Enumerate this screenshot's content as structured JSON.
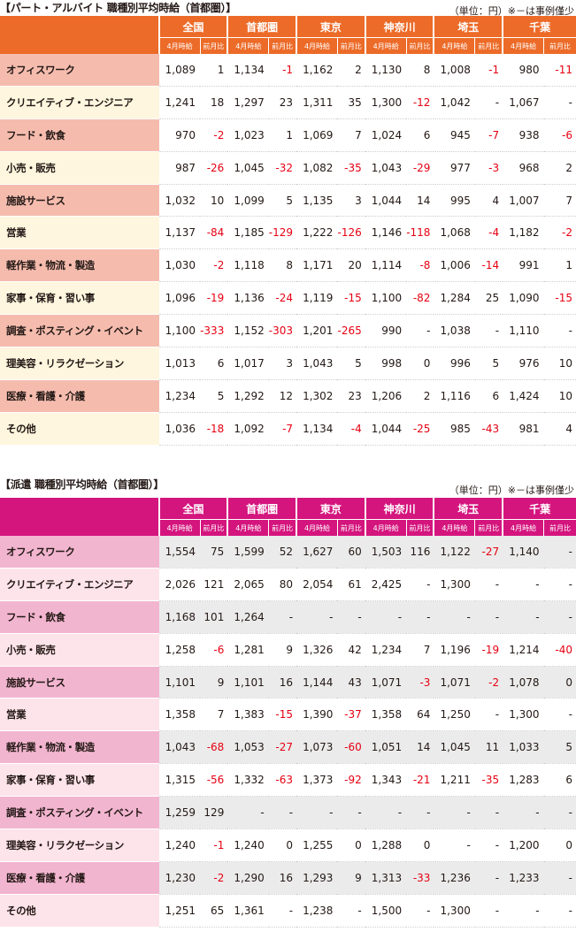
{
  "part": {
    "title": "【パート・アルバイト 職種別平均時給（首都圏）】",
    "unit_note": "（単位：円）※－は事例僅少",
    "regions": [
      "全国",
      "首都圏",
      "東京",
      "神奈川",
      "埼玉",
      "千葉"
    ],
    "col_hour": "4月時給",
    "col_diff": "前月比",
    "rows": [
      {
        "label": "オフィスワーク",
        "values": [
          "1,089",
          "1",
          "1,134",
          "-1",
          "1,162",
          "2",
          "1,130",
          "8",
          "1,008",
          "-1",
          "980",
          "-11"
        ]
      },
      {
        "label": "クリエイティブ・エンジニア",
        "values": [
          "1,241",
          "18",
          "1,297",
          "23",
          "1,311",
          "35",
          "1,300",
          "-12",
          "1,042",
          "-",
          "1,067",
          "-"
        ]
      },
      {
        "label": "フード・飲食",
        "values": [
          "970",
          "-2",
          "1,023",
          "1",
          "1,069",
          "7",
          "1,024",
          "6",
          "945",
          "-7",
          "938",
          "-6"
        ]
      },
      {
        "label": "小売・販売",
        "values": [
          "987",
          "-26",
          "1,045",
          "-32",
          "1,082",
          "-35",
          "1,043",
          "-29",
          "977",
          "-3",
          "968",
          "2"
        ]
      },
      {
        "label": "施設サービス",
        "values": [
          "1,032",
          "10",
          "1,099",
          "5",
          "1,135",
          "3",
          "1,044",
          "14",
          "995",
          "4",
          "1,007",
          "7"
        ]
      },
      {
        "label": "営業",
        "values": [
          "1,137",
          "-84",
          "1,185",
          "-129",
          "1,222",
          "-126",
          "1,146",
          "-118",
          "1,068",
          "-4",
          "1,182",
          "-2"
        ]
      },
      {
        "label": "軽作業・物流・製造",
        "values": [
          "1,030",
          "-2",
          "1,118",
          "8",
          "1,171",
          "20",
          "1,114",
          "-8",
          "1,006",
          "-14",
          "991",
          "1"
        ]
      },
      {
        "label": "家事・保育・習い事",
        "values": [
          "1,096",
          "-19",
          "1,136",
          "-24",
          "1,119",
          "-15",
          "1,100",
          "-82",
          "1,284",
          "25",
          "1,090",
          "-15"
        ]
      },
      {
        "label": "調査・ポスティング・イベント",
        "values": [
          "1,100",
          "-333",
          "1,152",
          "-303",
          "1,201",
          "-265",
          "990",
          "-",
          "1,038",
          "-",
          "1,110",
          "-"
        ]
      },
      {
        "label": "理美容・リラクゼーション",
        "values": [
          "1,013",
          "6",
          "1,017",
          "3",
          "1,043",
          "5",
          "998",
          "0",
          "996",
          "5",
          "976",
          "10"
        ]
      },
      {
        "label": "医療・看護・介護",
        "values": [
          "1,234",
          "5",
          "1,292",
          "12",
          "1,302",
          "23",
          "1,206",
          "2",
          "1,116",
          "6",
          "1,424",
          "10"
        ]
      },
      {
        "label": "その他",
        "values": [
          "1,036",
          "-18",
          "1,092",
          "-7",
          "1,134",
          "-4",
          "1,044",
          "-25",
          "985",
          "-43",
          "981",
          "4"
        ]
      }
    ]
  },
  "haken": {
    "title": "【派遣 職種別平均時給（首都圏）】",
    "unit_note": "（単位：円）※－は事例僅少",
    "regions": [
      "全国",
      "首都圏",
      "東京",
      "神奈川",
      "埼玉",
      "千葉"
    ],
    "col_hour": "4月時給",
    "col_diff": "前月比",
    "rows": [
      {
        "label": "オフィスワーク",
        "values": [
          "1,554",
          "75",
          "1,599",
          "52",
          "1,627",
          "60",
          "1,503",
          "116",
          "1,122",
          "-27",
          "1,140",
          "-"
        ]
      },
      {
        "label": "クリエイティブ・エンジニア",
        "values": [
          "2,026",
          "121",
          "2,065",
          "80",
          "2,054",
          "61",
          "2,425",
          "-",
          "1,300",
          "-",
          "-",
          "-"
        ]
      },
      {
        "label": "フード・飲食",
        "values": [
          "1,168",
          "101",
          "1,264",
          "-",
          "-",
          "-",
          "-",
          "-",
          "-",
          "-",
          "-",
          "-"
        ]
      },
      {
        "label": "小売・販売",
        "values": [
          "1,258",
          "-6",
          "1,281",
          "9",
          "1,326",
          "42",
          "1,234",
          "7",
          "1,196",
          "-19",
          "1,214",
          "-40"
        ]
      },
      {
        "label": "施設サービス",
        "values": [
          "1,101",
          "9",
          "1,101",
          "16",
          "1,144",
          "43",
          "1,071",
          "-3",
          "1,071",
          "-2",
          "1,078",
          "0"
        ]
      },
      {
        "label": "営業",
        "values": [
          "1,358",
          "7",
          "1,383",
          "-15",
          "1,390",
          "-37",
          "1,358",
          "64",
          "1,250",
          "-",
          "1,300",
          "-"
        ]
      },
      {
        "label": "軽作業・物流・製造",
        "values": [
          "1,043",
          "-68",
          "1,053",
          "-27",
          "1,073",
          "-60",
          "1,051",
          "14",
          "1,045",
          "11",
          "1,033",
          "5"
        ]
      },
      {
        "label": "家事・保育・習い事",
        "values": [
          "1,315",
          "-56",
          "1,332",
          "-63",
          "1,373",
          "-92",
          "1,343",
          "-21",
          "1,211",
          "-35",
          "1,283",
          "6"
        ]
      },
      {
        "label": "調査・ポスティング・イベント",
        "values": [
          "1,259",
          "129",
          "-",
          "-",
          "-",
          "-",
          "-",
          "-",
          "-",
          "-",
          "-",
          "-"
        ]
      },
      {
        "label": "理美容・リラクゼーション",
        "values": [
          "1,240",
          "-1",
          "1,240",
          "0",
          "1,255",
          "0",
          "1,288",
          "0",
          "-",
          "-",
          "1,200",
          "0"
        ]
      },
      {
        "label": "医療・看護・介護",
        "values": [
          "1,230",
          "-2",
          "1,290",
          "16",
          "1,293",
          "9",
          "1,313",
          "-33",
          "1,236",
          "-",
          "1,233",
          "-"
        ]
      },
      {
        "label": "その他",
        "values": [
          "1,251",
          "65",
          "1,361",
          "-",
          "1,238",
          "-",
          "1,500",
          "-",
          "1,300",
          "-",
          "-",
          "-"
        ]
      }
    ]
  },
  "colors": {
    "part_header": "#ec6b28",
    "part_label_odd": "#f5bcae",
    "part_label_even": "#fef6de",
    "haken_header": "#d4157e",
    "haken_label_odd": "#f2b5cf",
    "haken_label_even": "#fde4ea",
    "negative": "#e60012"
  }
}
